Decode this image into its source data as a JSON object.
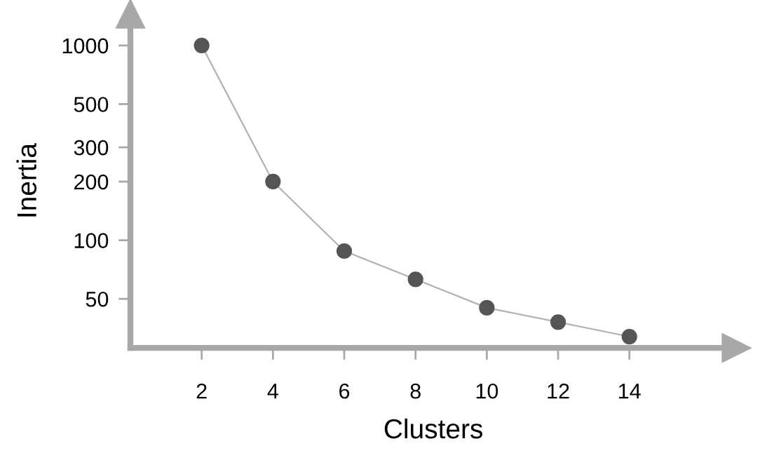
{
  "chart_data": {
    "type": "line",
    "xlabel": "Clusters",
    "ylabel": "Inertia",
    "x": [
      2,
      4,
      6,
      8,
      10,
      12,
      14
    ],
    "series": [
      {
        "color": "#555555",
        "values": [
          1000,
          200,
          88,
          63,
          45,
          38,
          32
        ]
      }
    ],
    "xlim": [
      0,
      17
    ],
    "xticks": [
      2,
      4,
      6,
      8,
      10,
      12,
      14
    ],
    "ylim": [
      28,
      1450
    ],
    "yticks": [
      50,
      100,
      200,
      300,
      500,
      1000
    ],
    "log": true,
    "marker": "circle",
    "line_style": "solid",
    "grid": false,
    "legend": false
  }
}
